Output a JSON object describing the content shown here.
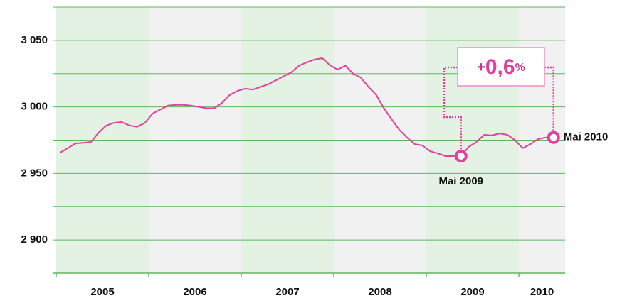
{
  "chart_data": {
    "type": "line",
    "series": [
      {
        "name": null,
        "color": "#e2409c",
        "x": [
          2005.0417,
          2005.125,
          2005.2083,
          2005.2917,
          2005.375,
          2005.4583,
          2005.5417,
          2005.625,
          2005.7083,
          2005.7917,
          2005.875,
          2005.9583,
          2006.0417,
          2006.125,
          2006.2083,
          2006.2917,
          2006.375,
          2006.4583,
          2006.5417,
          2006.625,
          2006.7083,
          2006.7917,
          2006.875,
          2006.9583,
          2007.0417,
          2007.125,
          2007.2083,
          2007.2917,
          2007.375,
          2007.4583,
          2007.5417,
          2007.625,
          2007.7083,
          2007.7917,
          2007.875,
          2007.9583,
          2008.0417,
          2008.125,
          2008.2083,
          2008.2917,
          2008.375,
          2008.4583,
          2008.5417,
          2008.625,
          2008.7083,
          2008.7917,
          2008.875,
          2008.9583,
          2009.0417,
          2009.125,
          2009.2083,
          2009.2917,
          2009.375,
          2009.4583,
          2009.5417,
          2009.625,
          2009.7083,
          2009.7917,
          2009.875,
          2009.9583,
          2010.0417,
          2010.125,
          2010.2083,
          2010.2917,
          2010.375
        ],
        "values": [
          2965.6,
          2969,
          2972.6,
          2973,
          2973.6,
          2980.6,
          2986,
          2988,
          2988.6,
          2986,
          2985,
          2988,
          2995,
          2998,
          3001,
          3001.5,
          3001.5,
          3001,
          3000,
          2999,
          2999,
          3003,
          3009,
          3012,
          3013.7,
          3013,
          3015,
          3017,
          3020,
          3023,
          3026,
          3031,
          3033.5,
          3035.6,
          3036.6,
          3031.3,
          3028,
          3031,
          3025,
          3022,
          3015,
          3009,
          2999,
          2990.7,
          2982.7,
          2977,
          2972,
          2971,
          2966.7,
          2965,
          2963,
          2963,
          2963,
          2970,
          2973.6,
          2979,
          2978.5,
          2980,
          2979,
          2975,
          2969,
          2972,
          2975.8,
          2977,
          2977
        ]
      }
    ],
    "xlim": [
      2005,
      2010.5
    ],
    "xticks": [
      {
        "value": 2005.5,
        "label": "2005"
      },
      {
        "value": 2006.5,
        "label": "2006"
      },
      {
        "value": 2007.5,
        "label": "2007"
      },
      {
        "value": 2008.5,
        "label": "2008"
      },
      {
        "value": 2009.5,
        "label": "2009"
      },
      {
        "value": 2010.25,
        "label": "2010"
      }
    ],
    "ylim": [
      2875,
      3075
    ],
    "yticks": [
      {
        "value": 2900,
        "label": "2 900"
      },
      {
        "value": 2950,
        "label": "2 950"
      },
      {
        "value": 3000,
        "label": "3 000"
      },
      {
        "value": 3050,
        "label": "3 050"
      }
    ],
    "minor_yticks": [
      2875,
      2925,
      2975,
      3025,
      3075
    ],
    "grid": true,
    "annotations": {
      "change_sign": "+",
      "change_value": "0,6",
      "change_unit": "%",
      "start_label": "Mai 2009",
      "end_label": "Mai 2010"
    }
  }
}
